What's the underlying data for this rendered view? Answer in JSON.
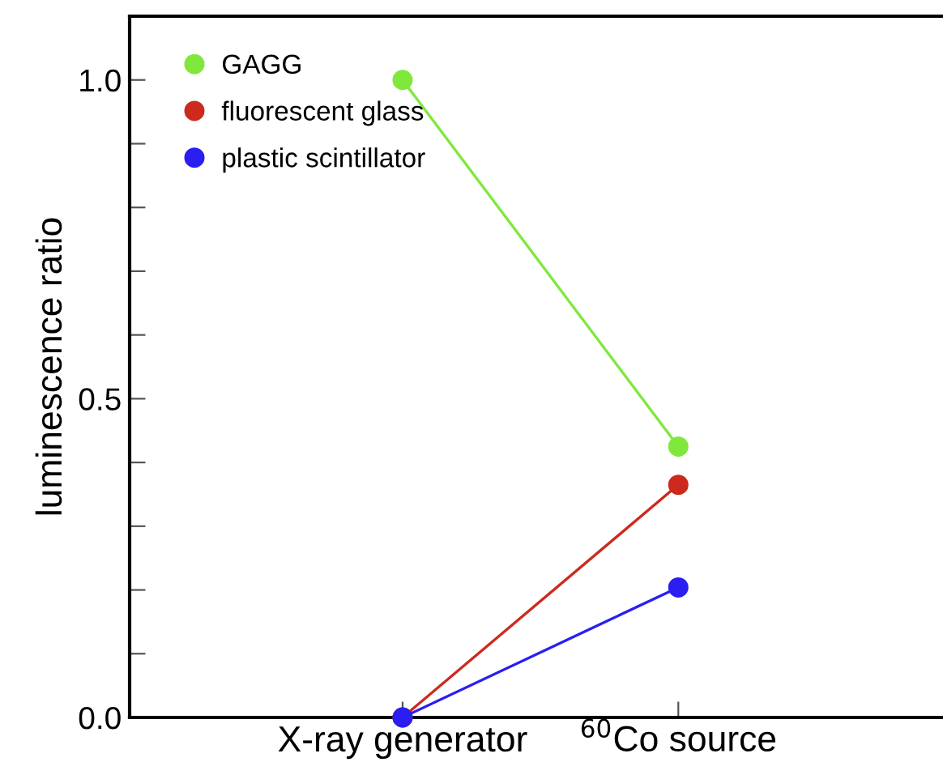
{
  "chart_data": {
    "type": "line",
    "ylabel": "luminescence ratio",
    "categories": [
      "X-ray generator",
      "$^{60}$Co source"
    ],
    "series": [
      {
        "name": "GAGG",
        "color": "#80e83c",
        "values": [
          1.0,
          0.425
        ]
      },
      {
        "name": "fluorescent glass",
        "color": "#cc2a1e",
        "values": [
          0.0,
          0.365
        ]
      },
      {
        "name": "plastic scintillator",
        "color": "#2a1ef0",
        "values": [
          0.0,
          0.204
        ]
      }
    ],
    "ylim": [
      0,
      1.1
    ],
    "yticks": [
      {
        "value": 0.0,
        "label": "0.0"
      },
      {
        "value": 0.1,
        "label": null
      },
      {
        "value": 0.2,
        "label": null
      },
      {
        "value": 0.3,
        "label": null
      },
      {
        "value": 0.4,
        "label": null
      },
      {
        "value": 0.5,
        "label": "0.5"
      },
      {
        "value": 0.6,
        "label": null
      },
      {
        "value": 0.7,
        "label": null
      },
      {
        "value": 0.8,
        "label": null
      },
      {
        "value": 0.9,
        "label": null
      },
      {
        "value": 1.0,
        "label": "1.0"
      }
    ],
    "marker": "circle",
    "line_style": "solid",
    "legend": "top left",
    "grid": false
  }
}
